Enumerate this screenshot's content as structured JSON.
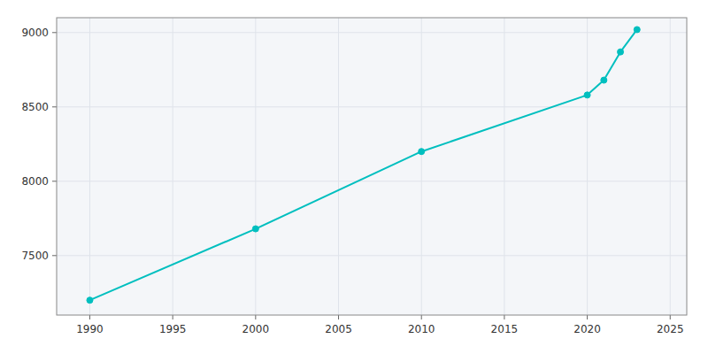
{
  "chart_data": {
    "type": "line",
    "x": [
      1990,
      2000,
      2010,
      2020,
      2021,
      2022,
      2023
    ],
    "values": [
      7200,
      7680,
      8200,
      8580,
      8680,
      8870,
      9020
    ],
    "color": "#00BFBF",
    "marker": "circle",
    "xlim": [
      1988,
      2026
    ],
    "ylim": [
      7100,
      9100
    ],
    "xticks": [
      1990,
      1995,
      2000,
      2005,
      2010,
      2015,
      2020,
      2025
    ],
    "yticks": [
      7500,
      8000,
      8500,
      9000
    ],
    "grid": true
  }
}
